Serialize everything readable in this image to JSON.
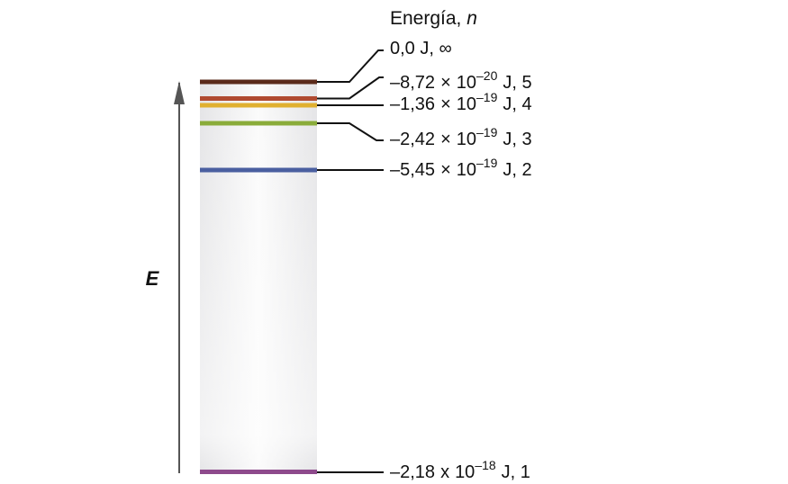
{
  "title": {
    "prefix": "Energía, ",
    "variable": "n"
  },
  "axis_label": "E",
  "levels": [
    {
      "n": "∞",
      "label": "0,0 J, ∞",
      "color": "#5a2a1a"
    },
    {
      "n": "5",
      "mantissa": "–8,72",
      "times": "×",
      "base": "10",
      "exponent": "–20",
      "suffix": "J, 5",
      "color": "#b04a30"
    },
    {
      "n": "4",
      "mantissa": "–1,36",
      "times": "×",
      "base": "10",
      "exponent": "–19",
      "suffix": "J, 4",
      "color": "#e0b030"
    },
    {
      "n": "3",
      "mantissa": "–2,42",
      "times": "×",
      "base": "10",
      "exponent": "–19",
      "suffix": "J, 3",
      "color": "#8aac3a"
    },
    {
      "n": "2",
      "mantissa": "–5,45",
      "times": "×",
      "base": "10",
      "exponent": "–19",
      "suffix": "J, 2",
      "color": "#4a5fa0"
    },
    {
      "n": "1",
      "mantissa": "–2,18",
      "times": "x",
      "base": "10",
      "exponent": "–18",
      "suffix": "J, 1",
      "color": "#8e4a8c"
    }
  ],
  "colors": {
    "column_gradient_edge": "#e6e6e8",
    "column_gradient_center": "#ffffff",
    "arrow": "#555555",
    "leader": "#111111"
  }
}
